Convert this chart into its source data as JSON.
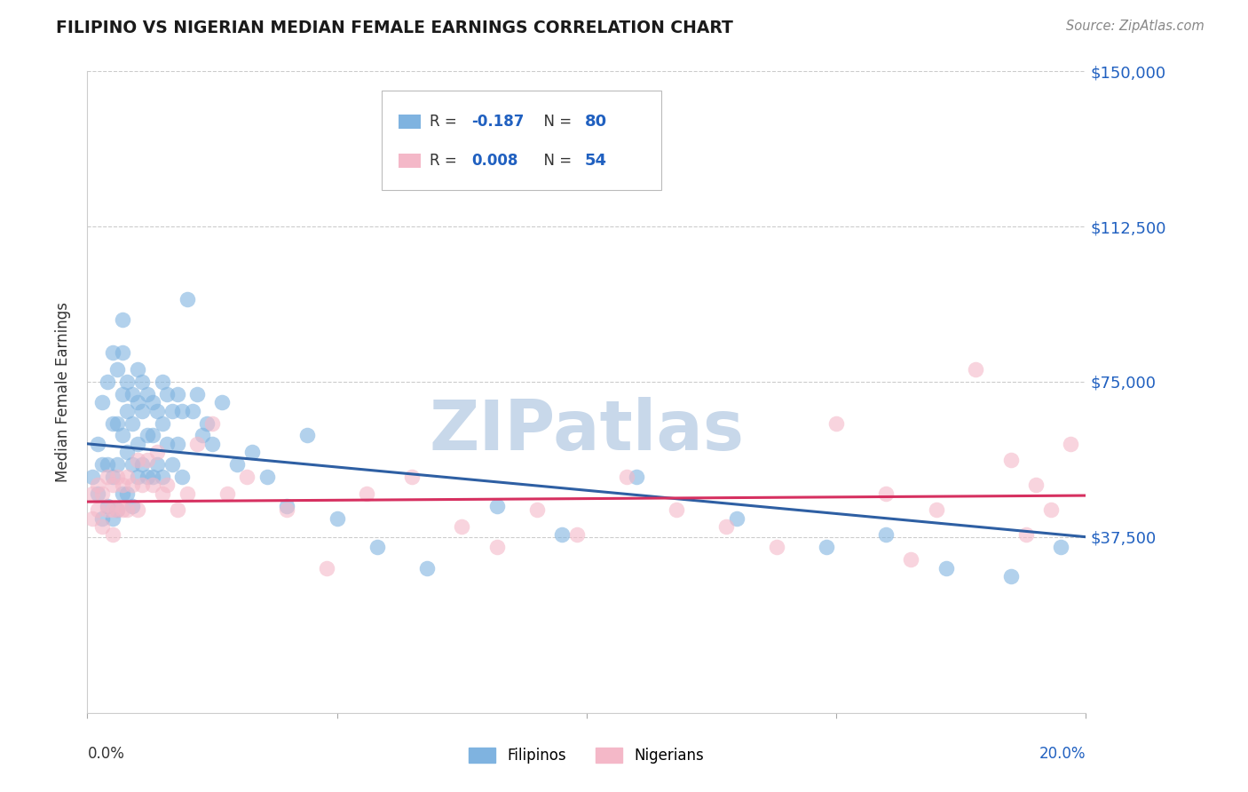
{
  "title": "FILIPINO VS NIGERIAN MEDIAN FEMALE EARNINGS CORRELATION CHART",
  "source": "Source: ZipAtlas.com",
  "ylabel": "Median Female Earnings",
  "y_ticks": [
    0,
    37500,
    75000,
    112500,
    150000
  ],
  "y_tick_labels": [
    "",
    "$37,500",
    "$75,000",
    "$112,500",
    "$150,000"
  ],
  "xmin": 0.0,
  "xmax": 0.2,
  "ymin": -5000,
  "ymax": 150000,
  "legend_r_filipino": "-0.187",
  "legend_n_filipino": "80",
  "legend_r_nigerian": "0.008",
  "legend_n_nigerian": "54",
  "filipino_color": "#7fb3e0",
  "nigerian_color": "#f4b8c8",
  "line_filipino_color": "#2e5fa3",
  "line_nigerian_color": "#d63060",
  "text_color": "#333333",
  "blue_label_color": "#2060c0",
  "grid_color": "#cccccc",
  "watermark": "ZIPatlas",
  "watermark_color": "#c8d8ea",
  "fil_line_y0": 60000,
  "fil_line_y1": 37500,
  "nig_line_y0": 46000,
  "nig_line_y1": 47500,
  "filipino_x": [
    0.001,
    0.002,
    0.002,
    0.003,
    0.003,
    0.003,
    0.004,
    0.004,
    0.004,
    0.005,
    0.005,
    0.005,
    0.005,
    0.006,
    0.006,
    0.006,
    0.006,
    0.007,
    0.007,
    0.007,
    0.007,
    0.007,
    0.008,
    0.008,
    0.008,
    0.008,
    0.009,
    0.009,
    0.009,
    0.009,
    0.01,
    0.01,
    0.01,
    0.01,
    0.011,
    0.011,
    0.011,
    0.012,
    0.012,
    0.012,
    0.013,
    0.013,
    0.013,
    0.014,
    0.014,
    0.015,
    0.015,
    0.015,
    0.016,
    0.016,
    0.017,
    0.017,
    0.018,
    0.018,
    0.019,
    0.019,
    0.02,
    0.021,
    0.022,
    0.023,
    0.024,
    0.025,
    0.027,
    0.03,
    0.033,
    0.036,
    0.04,
    0.044,
    0.05,
    0.058,
    0.068,
    0.082,
    0.095,
    0.11,
    0.13,
    0.148,
    0.16,
    0.172,
    0.185,
    0.195
  ],
  "filipino_y": [
    52000,
    60000,
    48000,
    70000,
    55000,
    42000,
    75000,
    55000,
    45000,
    82000,
    65000,
    52000,
    42000,
    78000,
    65000,
    55000,
    44000,
    90000,
    82000,
    72000,
    62000,
    48000,
    75000,
    68000,
    58000,
    48000,
    72000,
    65000,
    55000,
    45000,
    78000,
    70000,
    60000,
    52000,
    75000,
    68000,
    55000,
    72000,
    62000,
    52000,
    70000,
    62000,
    52000,
    68000,
    55000,
    75000,
    65000,
    52000,
    72000,
    60000,
    68000,
    55000,
    72000,
    60000,
    68000,
    52000,
    95000,
    68000,
    72000,
    62000,
    65000,
    60000,
    70000,
    55000,
    58000,
    52000,
    45000,
    62000,
    42000,
    35000,
    30000,
    45000,
    38000,
    52000,
    42000,
    35000,
    38000,
    30000,
    28000,
    35000
  ],
  "nigerian_x": [
    0.001,
    0.001,
    0.002,
    0.002,
    0.003,
    0.003,
    0.004,
    0.004,
    0.005,
    0.005,
    0.005,
    0.006,
    0.006,
    0.007,
    0.007,
    0.008,
    0.008,
    0.009,
    0.01,
    0.01,
    0.011,
    0.012,
    0.013,
    0.014,
    0.015,
    0.016,
    0.018,
    0.02,
    0.022,
    0.025,
    0.028,
    0.032,
    0.04,
    0.048,
    0.056,
    0.065,
    0.075,
    0.082,
    0.09,
    0.098,
    0.108,
    0.118,
    0.128,
    0.138,
    0.15,
    0.16,
    0.165,
    0.17,
    0.178,
    0.185,
    0.188,
    0.19,
    0.193,
    0.197
  ],
  "nigerian_y": [
    48000,
    42000,
    50000,
    44000,
    48000,
    40000,
    52000,
    44000,
    50000,
    44000,
    38000,
    52000,
    44000,
    50000,
    44000,
    52000,
    44000,
    50000,
    56000,
    44000,
    50000,
    56000,
    50000,
    58000,
    48000,
    50000,
    44000,
    48000,
    60000,
    65000,
    48000,
    52000,
    44000,
    30000,
    48000,
    52000,
    40000,
    35000,
    44000,
    38000,
    52000,
    44000,
    40000,
    35000,
    65000,
    48000,
    32000,
    44000,
    78000,
    56000,
    38000,
    50000,
    44000,
    60000
  ]
}
